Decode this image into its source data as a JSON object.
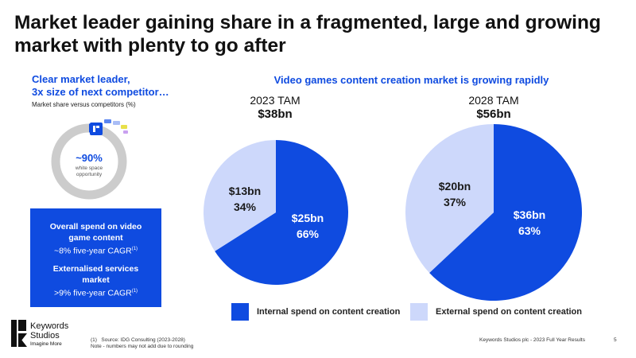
{
  "title": "Market leader gaining share in a fragmented, large and growing market with plenty to go after",
  "left_panel": {
    "heading_line1": "Clear market leader,",
    "heading_line2": "3x size of next competitor…",
    "subtitle": "Market share versus competitors (%)",
    "donut_value": "~90%",
    "donut_caption_line1": "white space",
    "donut_caption_line2": "opportunity",
    "box": {
      "item1_title_line1": "Overall spend on video",
      "item1_title_line2": "game  content",
      "item1_detail": "~8% five-year CAGR",
      "item1_sup": "(1)",
      "item2_title_line1": "Externalised services",
      "item2_title_line2": "market",
      "item2_detail": ">9% five-year CAGR",
      "item2_sup": "(1)"
    }
  },
  "right_heading": "Video games content creation market is growing rapidly",
  "chart_data": [
    {
      "type": "pie",
      "title": "2023 TAM",
      "total": "$38bn",
      "slices": [
        {
          "name": "Internal spend on content creation",
          "value": 25,
          "label": "$25bn",
          "percent": "66%",
          "pct": 66
        },
        {
          "name": "External spend on content creation",
          "value": 13,
          "label": "$13bn",
          "percent": "34%",
          "pct": 34
        }
      ]
    },
    {
      "type": "pie",
      "title": "2028 TAM",
      "total": "$56bn",
      "slices": [
        {
          "name": "Internal spend on content creation",
          "value": 36,
          "label": "$36bn",
          "percent": "63%",
          "pct": 63
        },
        {
          "name": "External spend on content creation",
          "value": 20,
          "label": "$20bn",
          "percent": "37%",
          "pct": 37
        }
      ]
    }
  ],
  "legend": {
    "internal": "Internal spend on content creation",
    "external": "External spend on content creation"
  },
  "colors": {
    "internal": "#0f4be0",
    "external": "#cdd8fb",
    "donut_ring": "#cccccc",
    "accent_blue": "#0f4be0"
  },
  "footer": {
    "logo_line1": "Keywords",
    "logo_line2": "Studios",
    "logo_tagline": "Imagine More",
    "source_num": "(1)",
    "source": "Source: IDG Consulting (2023-2028)",
    "note": "Note - numbers may not add due to rounding",
    "doc": "Keywords Studios plc - 2023 Full Year Results",
    "page": "5"
  }
}
